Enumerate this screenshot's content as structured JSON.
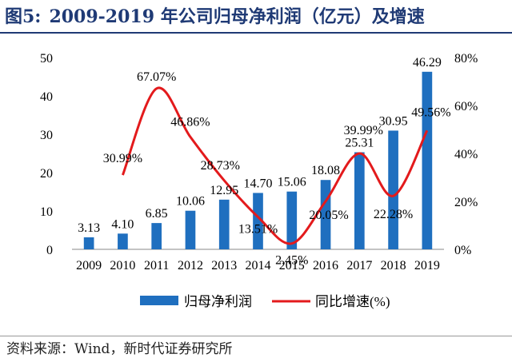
{
  "figure": {
    "number": "图5:",
    "title": "2009-2019 年公司归母净利润（亿元）及增速",
    "source": "资料来源：Wind，新时代证券研究所"
  },
  "colors": {
    "bar": "#1f6fbf",
    "line": "#e31a1c",
    "title": "#1f3a75"
  },
  "chart_data": {
    "type": "bar",
    "categories": [
      "2009",
      "2010",
      "2011",
      "2012",
      "2013",
      "2014",
      "2015",
      "2016",
      "2017",
      "2018",
      "2019"
    ],
    "series": [
      {
        "name": "归母净利润",
        "type": "bar",
        "axis": "left",
        "values": [
          3.13,
          4.1,
          6.85,
          10.06,
          12.95,
          14.7,
          15.06,
          18.08,
          25.31,
          30.95,
          46.29
        ],
        "labels": [
          "3.13",
          "4.10",
          "6.85",
          "10.06",
          "12.95",
          "14.70",
          "15.06",
          "18.08",
          "25.31",
          "30.95",
          "46.29"
        ]
      },
      {
        "name": "同比增速(%)",
        "type": "line",
        "axis": "right",
        "values": [
          null,
          30.99,
          67.07,
          46.86,
          28.73,
          13.51,
          2.45,
          20.05,
          39.99,
          22.28,
          49.56
        ],
        "labels": [
          "",
          "30.99%",
          "67.07%",
          "46.86%",
          "28.73%",
          "13.51%",
          "2.45%",
          "20.05%",
          "39.99%",
          "22.28%",
          "49.56%"
        ]
      }
    ],
    "y_left": {
      "ylim": [
        0,
        50
      ],
      "ticks": [
        0,
        10,
        20,
        30,
        40,
        50
      ],
      "tick_labels": [
        "0",
        "10",
        "20",
        "30",
        "40",
        "50"
      ]
    },
    "y_right": {
      "ylim": [
        0,
        80
      ],
      "ticks": [
        0,
        20,
        40,
        60,
        80
      ],
      "tick_labels": [
        "0%",
        "20%",
        "40%",
        "60%",
        "80%"
      ]
    },
    "grid": false,
    "legend_position": "bottom"
  }
}
